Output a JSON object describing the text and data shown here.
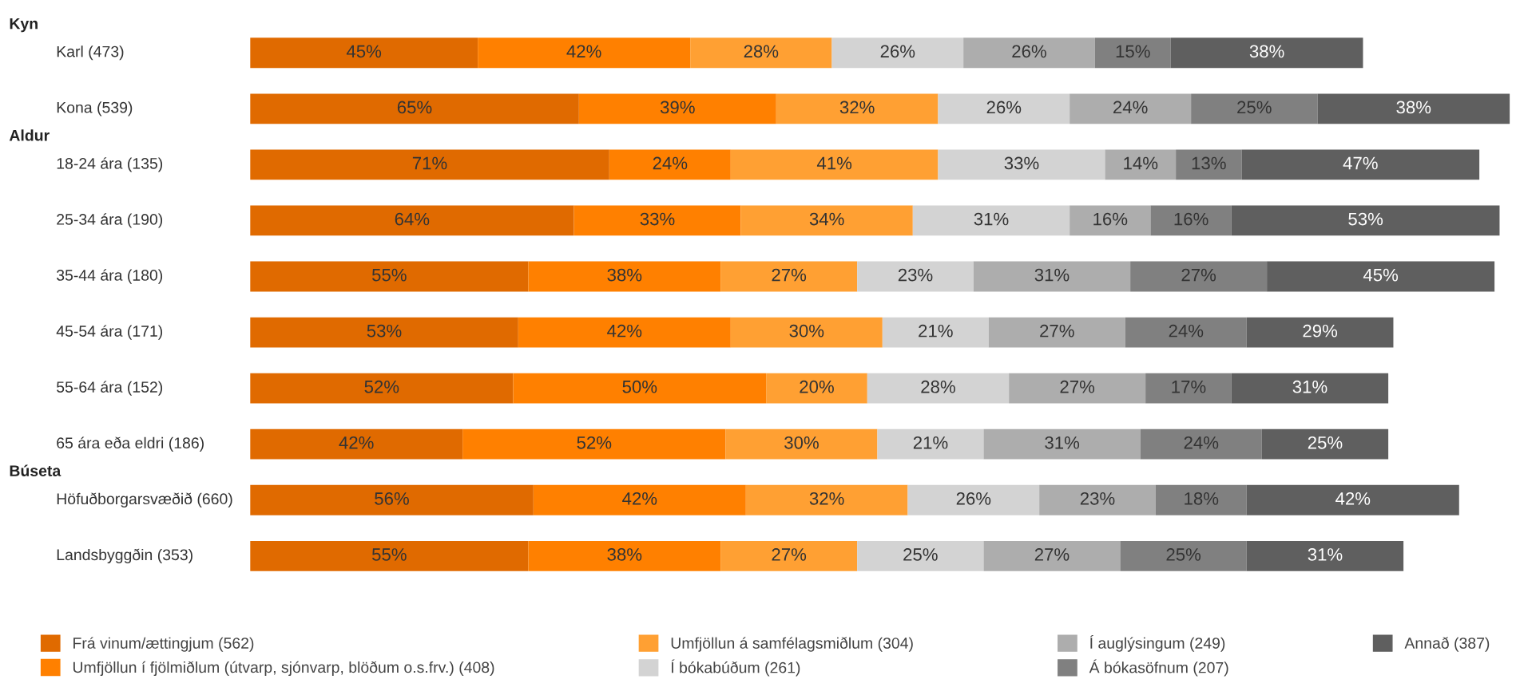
{
  "chart_data": {
    "type": "bar",
    "orientation": "horizontal",
    "stacked": true,
    "legend": "bottom",
    "categories": [
      "Karl (473)",
      "Kona (539)",
      "18-24 ára (135)",
      "25-34 ára (190)",
      "35-44 ára (180)",
      "45-54 ára (171)",
      "55-64 ára (152)",
      "65 ára eða eldri (186)",
      "Höfuðborgarsvæðið (660)",
      "Landsbyggðin (353)"
    ],
    "annotations": [
      "Kyn",
      "Aldur",
      "Búseta"
    ],
    "series": [
      {
        "name": "Frá vinum/ættingjum (562)",
        "color": "#e06a00",
        "values": [
          45,
          65,
          71,
          64,
          55,
          53,
          52,
          42,
          56,
          55
        ],
        "value_labels": [
          "45%",
          "65%",
          "71%",
          "64%",
          "55%",
          "53%",
          "52%",
          "42%",
          "56%",
          "55%"
        ]
      },
      {
        "name": "Umfjöllun í fjölmiðlum (útvarp, sjónvarp, blöðum o.s.frv.) (408)",
        "color": "#ff8000",
        "values": [
          42,
          39,
          24,
          33,
          38,
          42,
          50,
          52,
          42,
          38
        ],
        "value_labels": [
          "42%",
          "39%",
          "24%",
          "33%",
          "38%",
          "42%",
          "50%",
          "52%",
          "42%",
          "38%"
        ]
      },
      {
        "name": "Umfjöllun á samfélagsmiðlum (304)",
        "color": "#ffa033",
        "values": [
          28,
          32,
          41,
          34,
          27,
          30,
          20,
          30,
          32,
          27
        ],
        "value_labels": [
          "28%",
          "32%",
          "41%",
          "34%",
          "27%",
          "30%",
          "20%",
          "30%",
          "32%",
          "27%"
        ]
      },
      {
        "name": "Í bókabúðum (261)",
        "color": "#d3d3d3",
        "values": [
          26,
          26,
          33,
          31,
          23,
          21,
          28,
          21,
          26,
          25
        ],
        "value_labels": [
          "26%",
          "26%",
          "33%",
          "31%",
          "23%",
          "21%",
          "28%",
          "21%",
          "26%",
          "25%"
        ]
      },
      {
        "name": "Í auglýsingum (249)",
        "color": "#adadad",
        "values": [
          26,
          24,
          14,
          16,
          31,
          27,
          27,
          31,
          23,
          27
        ],
        "value_labels": [
          "26%",
          "24%",
          "14%",
          "16%",
          "31%",
          "27%",
          "27%",
          "31%",
          "23%",
          "27%"
        ]
      },
      {
        "name": "Á bókasöfnum (207)",
        "color": "#808080",
        "values": [
          15,
          25,
          13,
          16,
          27,
          24,
          17,
          24,
          18,
          25
        ],
        "value_labels": [
          "15%",
          "25%",
          "13%",
          "16%",
          "27%",
          "24%",
          "17%",
          "24%",
          "18%",
          "25%"
        ]
      },
      {
        "name": "Annað (387)",
        "color": "#5f5f5f",
        "values": [
          38,
          38,
          47,
          53,
          45,
          29,
          31,
          25,
          42,
          31
        ],
        "value_labels": [
          "38%",
          "38%",
          "47%",
          "53%",
          "45%",
          "29%",
          "31%",
          "25%",
          "42%",
          "31%"
        ]
      }
    ]
  }
}
